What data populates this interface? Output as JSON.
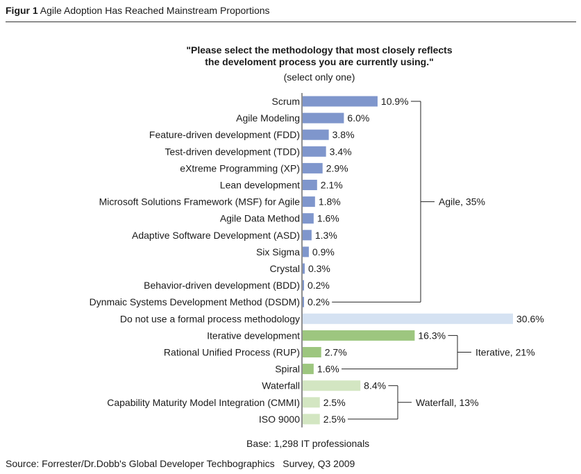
{
  "header": {
    "figure_label": "Figur 1",
    "figure_title": "Agile Adoption Has Reached Mainstream Proportions"
  },
  "chart_data": {
    "type": "bar",
    "orientation": "horizontal",
    "title_line1": "\"Please select the methodology that most closely reflects",
    "title_line2": "the develoment process you are currently using.\"",
    "subtitle": "(select only one)",
    "categories": [
      "Scrum",
      "Agile Modeling",
      "Feature-driven development (FDD)",
      "Test-driven development (TDD)",
      "eXtreme Programming (XP)",
      "Lean development",
      "Microsoft Solutions Framework (MSF) for Agile",
      "Agile Data Method",
      "Adaptive Software Development (ASD)",
      "Six Sigma",
      "Crystal",
      "Behavior-driven development (BDD)",
      "Dynmaic Systems Development Method (DSDM)",
      "Do not use a formal process methodology",
      "Iterative development",
      "Rational Unified Process (RUP)",
      "Spiral",
      "Waterfall",
      "Capability Maturity Model Integration (CMMI)",
      "ISO 9000"
    ],
    "values": [
      10.9,
      6.0,
      3.8,
      3.4,
      2.9,
      2.1,
      1.8,
      1.6,
      1.3,
      0.9,
      0.3,
      0.2,
      0.2,
      30.6,
      16.3,
      2.7,
      1.6,
      8.4,
      2.5,
      2.5
    ],
    "value_labels": [
      "10.9%",
      "6.0%",
      "3.8%",
      "3.4%",
      "2.9%",
      "2.1%",
      "1.8%",
      "1.6%",
      "1.3%",
      "0.9%",
      "0.3%",
      "0.2%",
      "0.2%",
      "30.6%",
      "16.3%",
      "2.7%",
      "1.6%",
      "8.4%",
      "2.5%",
      "2.5%"
    ],
    "groups": [
      {
        "label": "Agile, 35%",
        "start": 0,
        "end": 12,
        "color": "#7f96cc"
      },
      {
        "label": "",
        "start": 13,
        "end": 13,
        "color": "#d5e2f2"
      },
      {
        "label": "Iterative, 21%",
        "start": 14,
        "end": 16,
        "color": "#9dc67f"
      },
      {
        "label": "Waterfall, 13%",
        "start": 17,
        "end": 19,
        "color": "#d3e6c2"
      }
    ],
    "xlim": [
      0,
      30.6
    ]
  },
  "footer": {
    "base": "Base: 1,298 IT professionals",
    "source": "Source: Forrester/Dr.Dobb's Global Developer Techbographics   Survey, Q3 2009"
  }
}
